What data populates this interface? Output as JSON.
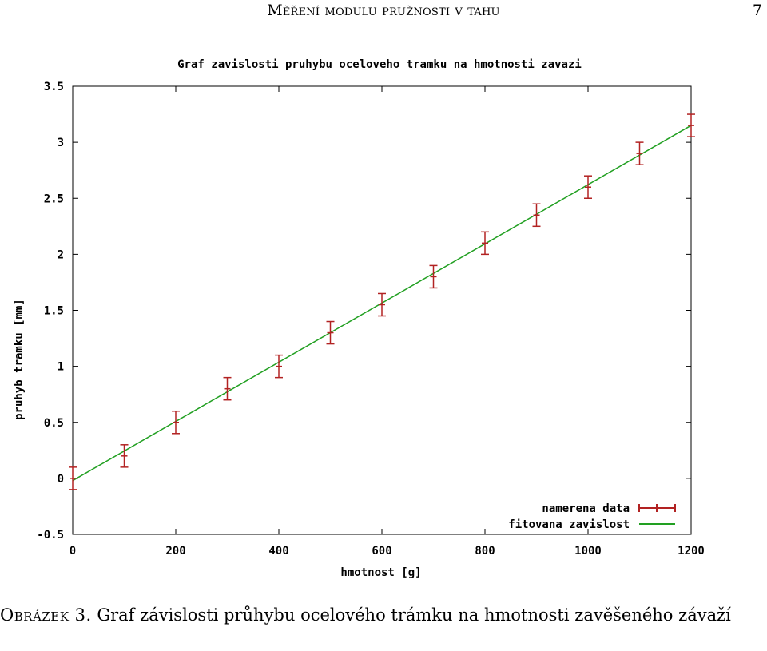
{
  "header": {
    "title": "Měření modulu pružnosti v tahu",
    "page_number": "7"
  },
  "caption": {
    "label": "Obrázek 3.",
    "text": "Graf závislosti průhybu ocelového trámku na hmotnosti zavěšeného závaží"
  },
  "chart_data": {
    "type": "scatter",
    "title": "Graf zavislosti pruhybu oceloveho tramku na hmotnosti zavazi",
    "xlabel": "hmotnost [g]",
    "ylabel": "pruhyb tramku [mm]",
    "xlim": [
      0,
      1200
    ],
    "ylim": [
      -0.5,
      3.5
    ],
    "xticks": [
      "0",
      "200",
      "400",
      "600",
      "800",
      "1000",
      "1200"
    ],
    "yticks": [
      "-0.5",
      "0",
      "0.5",
      "1",
      "1.5",
      "2",
      "2.5",
      "3",
      "3.5"
    ],
    "grid": false,
    "legend_position": "bottom-right",
    "series": [
      {
        "name": "namerena data",
        "type": "errorbar",
        "color": "#b22222",
        "x": [
          0,
          100,
          200,
          300,
          400,
          500,
          600,
          700,
          800,
          900,
          1000,
          1100,
          1200
        ],
        "y": [
          0.0,
          0.2,
          0.5,
          0.8,
          1.0,
          1.3,
          1.55,
          1.8,
          2.1,
          2.35,
          2.6,
          2.9,
          3.15
        ],
        "yerr": [
          0.1,
          0.1,
          0.1,
          0.1,
          0.1,
          0.1,
          0.1,
          0.1,
          0.1,
          0.1,
          0.1,
          0.1,
          0.1
        ]
      },
      {
        "name": "fitovana zavislost",
        "type": "line",
        "color": "#22a022",
        "x": [
          0,
          1200
        ],
        "y": [
          -0.02,
          3.15
        ]
      }
    ]
  }
}
